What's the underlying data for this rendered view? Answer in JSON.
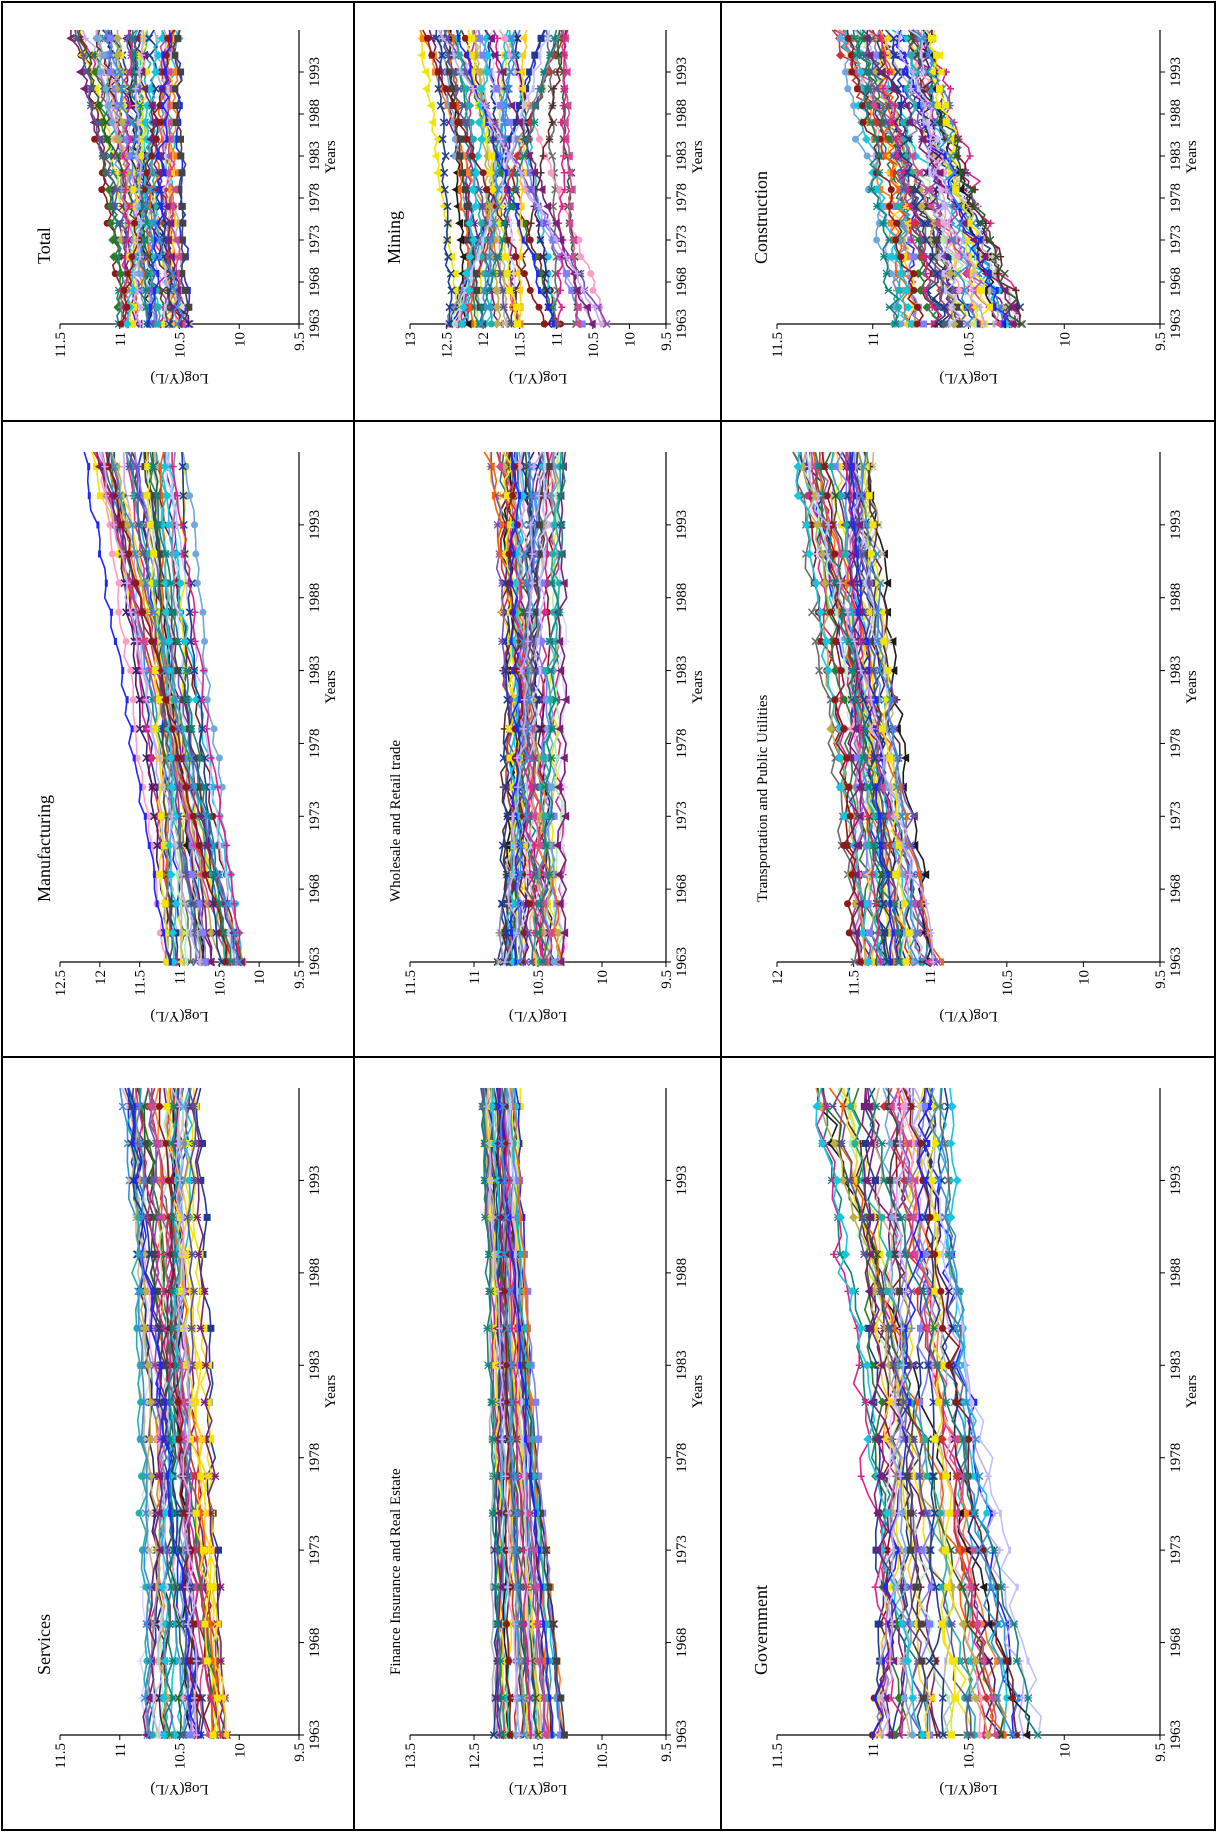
{
  "chart_data": [
    {
      "type": "line",
      "title": "Total",
      "xlabel": "Years",
      "ylabel": "Log(Y/L)",
      "x_ticks": [
        "1963",
        "1968",
        "1973",
        "1978",
        "1983",
        "1988",
        "1993"
      ],
      "y_ticks": [
        "9.5",
        "10",
        "10.5",
        "11",
        "11.5"
      ],
      "ylim": [
        9.5,
        11.5
      ],
      "xlim": [
        1963,
        1998
      ],
      "series_count": 50,
      "y_start_range": [
        10.4,
        11.0
      ],
      "y_end_range": [
        10.5,
        11.4
      ]
    },
    {
      "type": "line",
      "title": "Mining",
      "xlabel": "Years",
      "ylabel": "Log(Y/L)",
      "x_ticks": [
        "1963",
        "1968",
        "1973",
        "1978",
        "1983",
        "1988",
        "1993"
      ],
      "y_ticks": [
        "9.5",
        "10",
        "10.5",
        "11",
        "11.5",
        "12",
        "12.5",
        "13"
      ],
      "ylim": [
        9.5,
        13
      ],
      "xlim": [
        1963,
        1998
      ],
      "series_count": 50,
      "y_start_range": [
        10.3,
        12.5
      ],
      "y_end_range": [
        10.8,
        12.9
      ]
    },
    {
      "type": "line",
      "title": "Construction",
      "xlabel": "Years",
      "ylabel": "Log(Y/L)",
      "x_ticks": [
        "1963",
        "1968",
        "1973",
        "1978",
        "1983",
        "1988",
        "1993"
      ],
      "y_ticks": [
        "9.5",
        "10",
        "10.5",
        "11",
        "11.5"
      ],
      "ylim": [
        9.5,
        11.5
      ],
      "xlim": [
        1963,
        1998
      ],
      "series_count": 50,
      "y_start_range": [
        10.2,
        10.9
      ],
      "y_end_range": [
        10.7,
        11.2
      ]
    },
    {
      "type": "line",
      "title": "Manufacturing",
      "xlabel": "Years",
      "ylabel": "Log(Y/L)",
      "x_ticks": [
        "1963",
        "1968",
        "1973",
        "1978",
        "1983",
        "1988",
        "1993"
      ],
      "y_ticks": [
        "9.5",
        "10",
        "10.5",
        "11",
        "11.5",
        "12",
        "12.5"
      ],
      "ylim": [
        9.5,
        12.5
      ],
      "xlim": [
        1963,
        1998
      ],
      "series_count": 50,
      "y_start_range": [
        10.2,
        11.2
      ],
      "y_end_range": [
        10.9,
        12.2
      ]
    },
    {
      "type": "line",
      "title": "Wholesale and Retail trade",
      "xlabel": "Years",
      "ylabel": "Log(Y/L)",
      "x_ticks": [
        "1963",
        "1968",
        "1973",
        "1978",
        "1983",
        "1988",
        "1993"
      ],
      "y_ticks": [
        "9.5",
        "10",
        "10.5",
        "11",
        "11.5"
      ],
      "ylim": [
        9.5,
        11.5
      ],
      "xlim": [
        1963,
        1998
      ],
      "series_count": 50,
      "y_start_range": [
        10.3,
        10.8
      ],
      "y_end_range": [
        10.3,
        10.9
      ]
    },
    {
      "type": "line",
      "title": "Transportation and Public Utilities",
      "xlabel": "Years",
      "ylabel": "Log(Y/L)",
      "x_ticks": [
        "1963",
        "1968",
        "1973",
        "1978",
        "1983",
        "1988",
        "1993"
      ],
      "y_ticks": [
        "9.5",
        "10",
        "10.5",
        "11",
        "11.5",
        "12"
      ],
      "ylim": [
        9.5,
        12
      ],
      "xlim": [
        1963,
        1998
      ],
      "series_count": 50,
      "y_start_range": [
        10.9,
        11.5
      ],
      "y_end_range": [
        11.4,
        11.9
      ]
    },
    {
      "type": "line",
      "title": "Services",
      "xlabel": "Years",
      "ylabel": "Log(Y/L)",
      "x_ticks": [
        "1963",
        "1968",
        "1973",
        "1978",
        "1983",
        "1988",
        "1993"
      ],
      "y_ticks": [
        "9.5",
        "10",
        "10.5",
        "11",
        "11.5"
      ],
      "ylim": [
        9.5,
        11.5
      ],
      "xlim": [
        1963,
        1998
      ],
      "series_count": 50,
      "y_start_range": [
        10.1,
        10.8
      ],
      "y_end_range": [
        10.3,
        11.0
      ]
    },
    {
      "type": "line",
      "title": "Finance Insurance and Real Estate",
      "xlabel": "Years",
      "ylabel": "Log(Y/L)",
      "x_ticks": [
        "1963",
        "1968",
        "1973",
        "1978",
        "1983",
        "1988",
        "1993"
      ],
      "y_ticks": [
        "9.5",
        "10.5",
        "11.5",
        "12.5",
        "13.5"
      ],
      "ylim": [
        9.5,
        13.5
      ],
      "xlim": [
        1963,
        1998
      ],
      "series_count": 50,
      "y_start_range": [
        11.1,
        12.2
      ],
      "y_end_range": [
        11.8,
        12.4
      ]
    },
    {
      "type": "line",
      "title": "Government",
      "xlabel": "Years",
      "ylabel": "Log(Y/L)",
      "x_ticks": [
        "1963",
        "1968",
        "1973",
        "1978",
        "1983",
        "1988",
        "1993"
      ],
      "y_ticks": [
        "9.5",
        "10",
        "10.5",
        "11",
        "11.5"
      ],
      "ylim": [
        9.5,
        11.5
      ],
      "xlim": [
        1963,
        1998
      ],
      "series_count": 50,
      "y_start_range": [
        10.1,
        11.0
      ],
      "y_end_range": [
        10.6,
        11.3
      ]
    }
  ],
  "palette": [
    "#1f3b8f",
    "#e0218a",
    "#f2e600",
    "#12c7e0",
    "#7a1f7a",
    "#8b1a1a",
    "#10857a",
    "#1f26ff",
    "#3a8fd6",
    "#c8a8f0",
    "#1f3b8f",
    "#e0218a",
    "#f2e600",
    "#12c7e0",
    "#7a1f7a",
    "#b5b5b5",
    "#6b6b6b",
    "#d8d8ff",
    "#ff7f1f",
    "#2a7d2a",
    "#1a1a1a",
    "#ff9ec4",
    "#c9b68a",
    "#a9f0b0",
    "#3a1f6b",
    "#5b2a2a",
    "#7f7fff",
    "#cc3333",
    "#ffd11a",
    "#6fa8dc",
    "#7a4fbf",
    "#ff5f00",
    "#2b5f2b",
    "#8888aa",
    "#444444",
    "#bfae48",
    "#d14a9a",
    "#20b2aa",
    "#555599",
    "#c0c0ff"
  ]
}
